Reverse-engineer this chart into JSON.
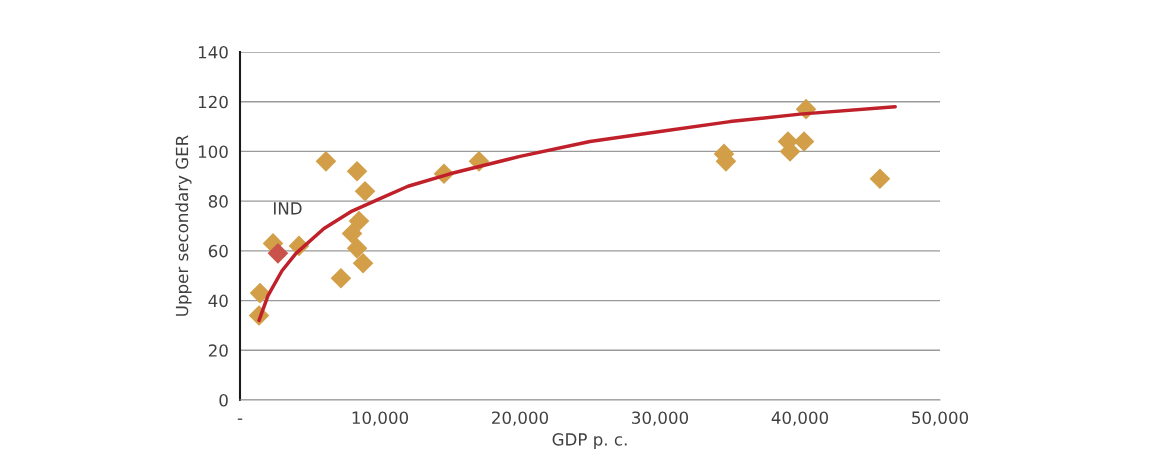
{
  "chart_data": {
    "type": "scatter",
    "xlabel": "GDP p. c.",
    "ylabel": "Upper secondary GER",
    "xlim": [
      0,
      50000
    ],
    "xticks": [
      {
        "value": 0,
        "label": "-"
      },
      {
        "value": 10000,
        "label": "10,000"
      },
      {
        "value": 20000,
        "label": "20,000"
      },
      {
        "value": 30000,
        "label": "30,000"
      },
      {
        "value": 40000,
        "label": "40,000"
      },
      {
        "value": 50000,
        "label": "50,000"
      }
    ],
    "ylim": [
      0,
      140
    ],
    "yticks": [
      0,
      20,
      40,
      60,
      80,
      100,
      120,
      140
    ],
    "grid": "y",
    "legend": false,
    "series": [
      {
        "marker": "diamond",
        "x": [
          1360,
          1430,
          2360,
          2710,
          4210,
          6140,
          7210,
          8000,
          8360,
          8360,
          8500,
          8790,
          8930,
          14570,
          17070,
          34570,
          34710,
          39140,
          39290,
          40290,
          40430,
          45710
        ],
        "values": [
          34,
          43,
          63,
          59,
          62,
          96,
          49,
          67,
          92,
          61,
          72,
          55,
          84,
          91,
          96,
          99,
          96,
          104,
          100,
          104,
          117,
          89
        ],
        "colors": [
          "#d29f48",
          "#d29f48",
          "#d29f48",
          "#c9534b",
          "#d29f48",
          "#d29f48",
          "#d29f48",
          "#d29f48",
          "#d29f48",
          "#d29f48",
          "#d29f48",
          "#d29f48",
          "#d29f48",
          "#d29f48",
          "#d29f48",
          "#d29f48",
          "#d29f48",
          "#d29f48",
          "#d29f48",
          "#d29f48",
          "#d29f48",
          "#d29f48"
        ]
      },
      {
        "type": "line",
        "color": "#c0202a",
        "x": [
          1360,
          2000,
          3000,
          4000,
          6000,
          8000,
          10000,
          12000,
          15000,
          20000,
          25000,
          30000,
          35000,
          40000,
          46800
        ],
        "values": [
          32,
          42,
          52,
          59,
          69,
          76,
          81,
          86,
          91,
          98,
          104,
          108,
          112,
          115,
          118
        ]
      }
    ],
    "annotations": [
      {
        "text": "IND",
        "x": 2710,
        "y": 59
      }
    ]
  }
}
